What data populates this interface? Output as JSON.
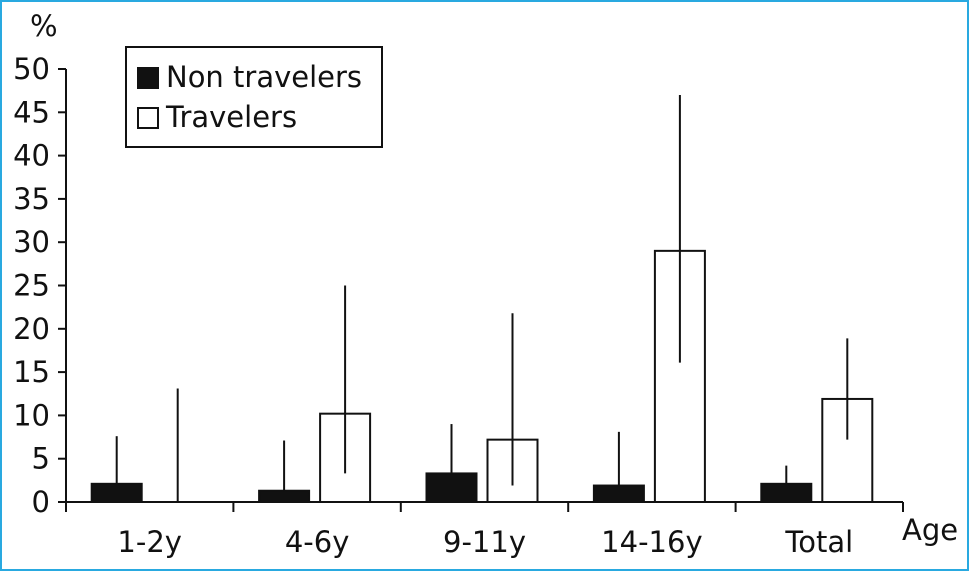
{
  "colors": {
    "frame": "#29a9e0",
    "non_travelers": "#111111",
    "travelers": "#ffffff",
    "axis": "#111111"
  },
  "chart_data": {
    "type": "bar",
    "title": "",
    "xlabel": "Age",
    "ylabel": "%",
    "ylim": [
      0,
      50
    ],
    "yticks": [
      0,
      5,
      10,
      15,
      20,
      25,
      30,
      35,
      40,
      45,
      50
    ],
    "categories": [
      "1-2y",
      "4-6y",
      "9-11y",
      "14-16y",
      "Total"
    ],
    "legend_position": "top-left",
    "grid": false,
    "series": [
      {
        "name": "Non travelers",
        "color": "#111111",
        "values": [
          2.1,
          1.3,
          3.3,
          1.9,
          2.1
        ],
        "error_upper": [
          7.6,
          7.1,
          9.0,
          8.1,
          4.2
        ],
        "error_lower": [
          2.1,
          1.3,
          3.3,
          1.9,
          2.1
        ]
      },
      {
        "name": "Travelers",
        "color": "#ffffff",
        "values": [
          0,
          10.2,
          7.2,
          29.0,
          11.9
        ],
        "error_upper": [
          13.1,
          25.0,
          21.8,
          47.0,
          18.9
        ],
        "error_lower": [
          0,
          3.3,
          1.9,
          16.1,
          7.2
        ]
      }
    ]
  }
}
